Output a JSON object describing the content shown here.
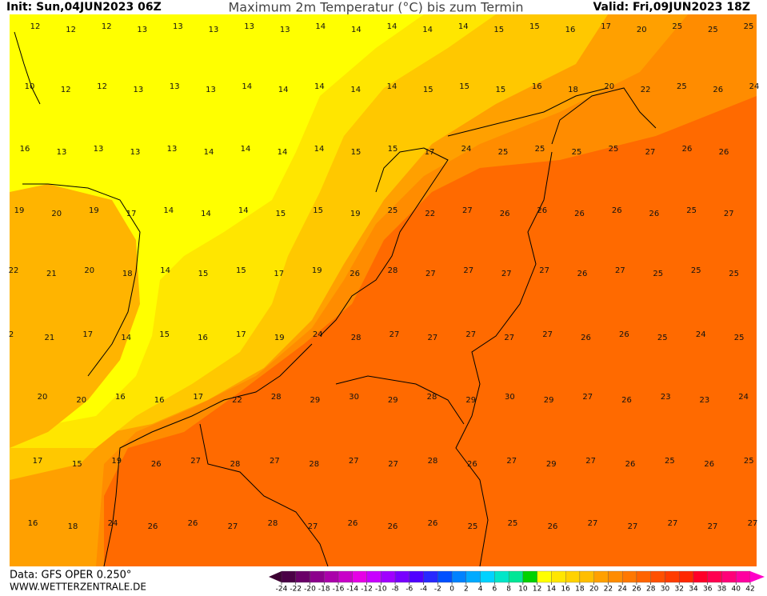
{
  "header": {
    "init": "Init: Sun,04JUN2023 06Z",
    "title": "Maximum 2m Temperatur (°C) bis zum Termin",
    "valid": "Valid: Fri,09JUN2023 18Z"
  },
  "map": {
    "temperature_rows": [
      [
        12,
        12,
        12,
        13,
        13,
        13,
        13,
        13,
        14,
        14,
        14,
        14,
        14,
        15,
        15,
        16,
        17,
        20,
        25,
        25,
        25
      ],
      [
        10,
        12,
        12,
        13,
        13,
        13,
        14,
        14,
        14,
        14,
        14,
        15,
        15,
        15,
        16,
        18,
        20,
        22,
        25,
        26,
        24
      ],
      [
        16,
        13,
        13,
        13,
        13,
        14,
        14,
        14,
        14,
        15,
        15,
        17,
        24,
        25,
        25,
        25,
        25,
        27,
        26,
        26
      ],
      [
        19,
        20,
        19,
        17,
        14,
        14,
        14,
        15,
        15,
        19,
        25,
        22,
        27,
        26,
        26,
        26,
        26,
        26,
        25,
        27
      ],
      [
        22,
        21,
        20,
        18,
        14,
        15,
        15,
        17,
        19,
        26,
        28,
        27,
        27,
        27,
        27,
        26,
        27,
        25,
        25,
        25
      ],
      [
        2,
        21,
        17,
        14,
        15,
        16,
        17,
        19,
        24,
        28,
        27,
        27,
        27,
        27,
        27,
        26,
        26,
        25,
        24,
        25
      ],
      [
        20,
        20,
        16,
        16,
        17,
        22,
        28,
        29,
        30,
        29,
        28,
        29,
        30,
        29,
        27,
        26,
        23,
        23,
        24
      ],
      [
        17,
        15,
        19,
        26,
        27,
        28,
        27,
        28,
        27,
        27,
        28,
        26,
        27,
        29,
        27,
        26,
        25,
        26,
        25
      ],
      [
        16,
        18,
        24,
        26,
        26,
        27,
        28,
        27,
        26,
        26,
        26,
        25,
        25,
        26,
        27,
        27,
        27,
        27,
        27
      ]
    ]
  },
  "legend": {
    "ticks": [
      -24,
      -22,
      -20,
      -18,
      -16,
      -14,
      -12,
      -10,
      -8,
      -6,
      -4,
      -2,
      0,
      2,
      4,
      6,
      8,
      10,
      12,
      14,
      16,
      18,
      20,
      22,
      24,
      26,
      28,
      30,
      32,
      34,
      36,
      38,
      40,
      42
    ]
  },
  "footer": {
    "data_source": "Data: GFS OPER 0.250°",
    "website": "WWW.WETTERZENTRALE.DE"
  }
}
